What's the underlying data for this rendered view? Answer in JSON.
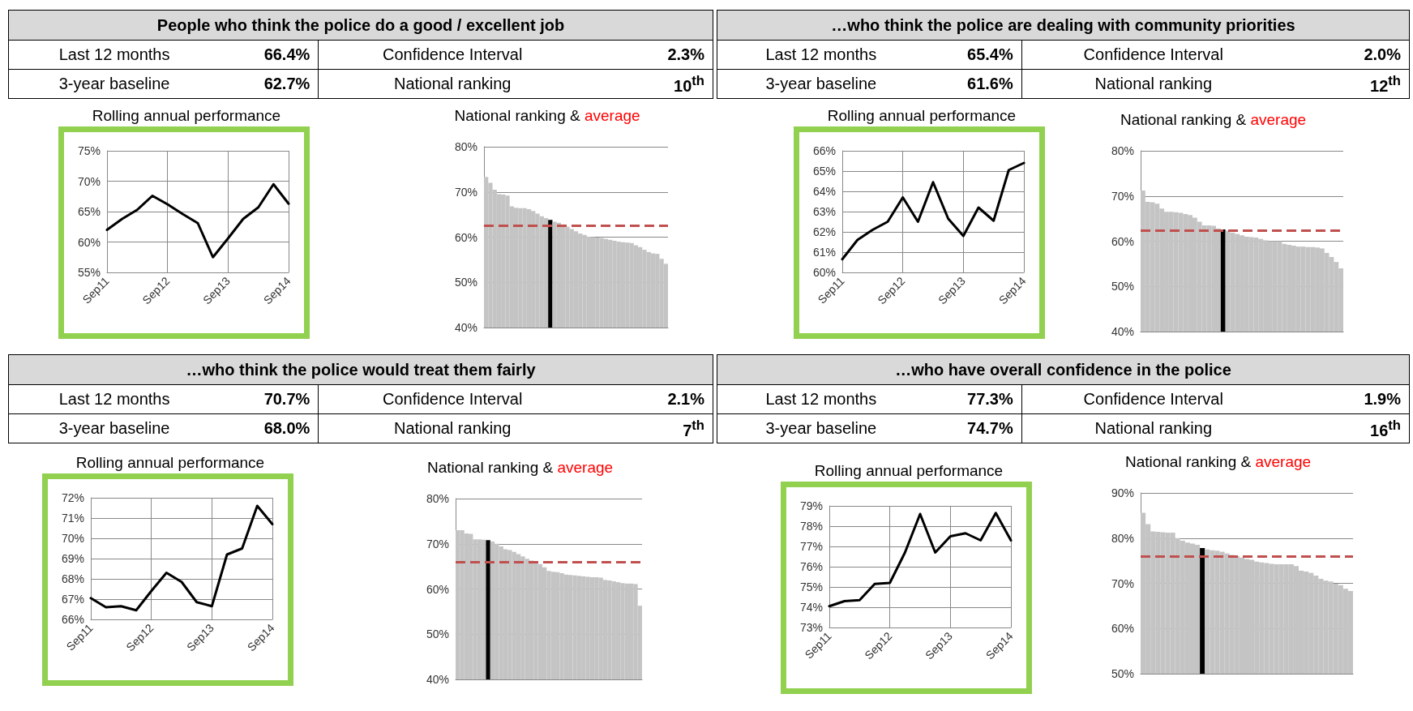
{
  "chart_data": [
    {
      "type": "other",
      "title": "People who think the police do a good / excellent job",
      "annotations": [
        "Last 12 months",
        "66.4%",
        "Confidence Interval",
        "2.3%",
        "3-year baseline",
        "62.7%",
        "National ranking",
        "10$^{th}$"
      ]
    },
    {
      "type": "other",
      "title": "…who think the police are dealing with community priorities",
      "annotations": [
        "Last 12 months",
        "65.4%",
        "Confidence Interval",
        "2.0%",
        "3-year baseline",
        "61.6%",
        "National ranking",
        "12$^{th}$"
      ]
    },
    {
      "type": "line",
      "title": "Rolling annual performance",
      "categories": [
        "Sep11",
        null,
        null,
        null,
        "Sep12",
        null,
        null,
        null,
        "Sep13",
        null,
        null,
        null,
        "Sep14"
      ],
      "series": [
        {
          "color": "#000000",
          "values": [
            62.0,
            63.8,
            65.3,
            67.6,
            66.2,
            64.6,
            63.1,
            57.5,
            60.6,
            63.8,
            65.7,
            69.5,
            66.3
          ]
        }
      ],
      "ylim": [
        55,
        75
      ],
      "yticks": [
        {
          "value": 55,
          "label": "55%"
        },
        {
          "value": 60,
          "label": "60%"
        },
        {
          "value": 65,
          "label": "65%"
        },
        {
          "value": 70,
          "label": "70%"
        },
        {
          "value": 75,
          "label": "75%"
        }
      ],
      "grid": true,
      "marker": "none",
      "line_style": "solid"
    },
    {
      "type": "bar",
      "title": "National ranking & average",
      "categories": [
        null,
        null,
        null,
        null,
        null,
        null,
        null,
        null,
        null,
        null,
        null,
        null,
        null,
        null,
        null,
        null,
        null,
        null,
        null,
        null,
        null,
        null,
        null,
        null,
        null,
        null,
        null,
        null,
        null,
        null,
        null,
        null,
        null,
        null,
        null,
        null,
        null,
        null,
        null,
        null,
        null,
        null,
        null
      ],
      "values": [
        73.3,
        72.0,
        70.5,
        69.5,
        69.4,
        69.2,
        66.8,
        66.5,
        66.4,
        66.4,
        66.2,
        65.8,
        65.2,
        64.6,
        64.2,
        63.8,
        63.4,
        63.2,
        62.8,
        62.3,
        61.8,
        61.3,
        60.8,
        60.5,
        60.1,
        60.0,
        59.9,
        59.8,
        59.6,
        59.4,
        59.2,
        59.0,
        58.9,
        58.8,
        58.7,
        58.2,
        57.8,
        57.2,
        56.7,
        56.4,
        56.3,
        55.2,
        54.1
      ],
      "colors": [
        "#c4c4c4",
        "#c4c4c4",
        "#c4c4c4",
        "#c4c4c4",
        "#c4c4c4",
        "#c4c4c4",
        "#c4c4c4",
        "#c4c4c4",
        "#c4c4c4",
        "#c4c4c4",
        "#c4c4c4",
        "#c4c4c4",
        "#c4c4c4",
        "#c4c4c4",
        "#c4c4c4",
        "#000000",
        "#c4c4c4",
        "#c4c4c4",
        "#c4c4c4",
        "#c4c4c4",
        "#c4c4c4",
        "#c4c4c4",
        "#c4c4c4",
        "#c4c4c4",
        "#c4c4c4",
        "#c4c4c4",
        "#c4c4c4",
        "#c4c4c4",
        "#c4c4c4",
        "#c4c4c4",
        "#c4c4c4",
        "#c4c4c4",
        "#c4c4c4",
        "#c4c4c4",
        "#c4c4c4",
        "#c4c4c4",
        "#c4c4c4",
        "#c4c4c4",
        "#c4c4c4",
        "#c4c4c4",
        "#c4c4c4",
        "#c4c4c4",
        "#c4c4c4"
      ],
      "ylim": [
        40,
        80
      ],
      "yticks": [
        {
          "value": 40,
          "label": "40%"
        },
        {
          "value": 50,
          "label": "50%"
        },
        {
          "value": 60,
          "label": "60%"
        },
        {
          "value": 70,
          "label": "70%"
        },
        {
          "value": 80,
          "label": "80%"
        }
      ],
      "grid": "y",
      "tick_labels": "y",
      "ref_lines": [
        {
          "axis": "y",
          "value": 62.5,
          "color": "#c0504d",
          "line_style": "dashed"
        }
      ]
    },
    {
      "type": "line",
      "title": "Rolling annual performance",
      "categories": [
        "Sep11",
        null,
        null,
        null,
        "Sep12",
        null,
        null,
        null,
        "Sep13",
        null,
        null,
        null,
        "Sep14"
      ],
      "series": [
        {
          "color": "#000000",
          "values": [
            60.65,
            61.6,
            62.1,
            62.5,
            63.7,
            62.5,
            64.45,
            62.65,
            61.8,
            63.2,
            62.55,
            65.05,
            65.4
          ]
        }
      ],
      "ylim": [
        60,
        66
      ],
      "yticks": [
        {
          "value": 60,
          "label": "60%"
        },
        {
          "value": 61,
          "label": "61%"
        },
        {
          "value": 62,
          "label": "62%"
        },
        {
          "value": 63,
          "label": "63%"
        },
        {
          "value": 64,
          "label": "64%"
        },
        {
          "value": 65,
          "label": "65%"
        },
        {
          "value": 66,
          "label": "66%"
        }
      ],
      "grid": true,
      "marker": "none",
      "line_style": "solid"
    },
    {
      "type": "bar",
      "title": "National ranking & average",
      "categories": [
        null,
        null,
        null,
        null,
        null,
        null,
        null,
        null,
        null,
        null,
        null,
        null,
        null,
        null,
        null,
        null,
        null,
        null,
        null,
        null,
        null,
        null,
        null,
        null,
        null,
        null,
        null,
        null,
        null,
        null,
        null,
        null,
        null,
        null,
        null,
        null,
        null,
        null,
        null,
        null,
        null,
        null,
        null
      ],
      "values": [
        71.2,
        68.7,
        68.6,
        68.3,
        67.2,
        66.5,
        66.5,
        66.4,
        66.3,
        66.0,
        65.8,
        65.2,
        64.3,
        63.5,
        63.5,
        63.4,
        62.8,
        62.6,
        62.3,
        61.9,
        61.6,
        61.3,
        61.0,
        60.9,
        60.8,
        60.5,
        60.2,
        60.0,
        60.0,
        60.0,
        59.4,
        59.2,
        59.0,
        58.8,
        58.8,
        58.7,
        58.7,
        58.6,
        58.4,
        57.4,
        56.5,
        55.4,
        54.0
      ],
      "colors": [
        "#c4c4c4",
        "#c4c4c4",
        "#c4c4c4",
        "#c4c4c4",
        "#c4c4c4",
        "#c4c4c4",
        "#c4c4c4",
        "#c4c4c4",
        "#c4c4c4",
        "#c4c4c4",
        "#c4c4c4",
        "#c4c4c4",
        "#c4c4c4",
        "#c4c4c4",
        "#c4c4c4",
        "#c4c4c4",
        "#c4c4c4",
        "#000000",
        "#c4c4c4",
        "#c4c4c4",
        "#c4c4c4",
        "#c4c4c4",
        "#c4c4c4",
        "#c4c4c4",
        "#c4c4c4",
        "#c4c4c4",
        "#c4c4c4",
        "#c4c4c4",
        "#c4c4c4",
        "#c4c4c4",
        "#c4c4c4",
        "#c4c4c4",
        "#c4c4c4",
        "#c4c4c4",
        "#c4c4c4",
        "#c4c4c4",
        "#c4c4c4",
        "#c4c4c4",
        "#c4c4c4",
        "#c4c4c4",
        "#c4c4c4",
        "#c4c4c4",
        "#c4c4c4"
      ],
      "ylim": [
        40,
        80
      ],
      "yticks": [
        {
          "value": 40,
          "label": "40%"
        },
        {
          "value": 50,
          "label": "50%"
        },
        {
          "value": 60,
          "label": "60%"
        },
        {
          "value": 70,
          "label": "70%"
        },
        {
          "value": 80,
          "label": "80%"
        }
      ],
      "grid": "y",
      "tick_labels": "y",
      "ref_lines": [
        {
          "axis": "y",
          "value": 62.3,
          "color": "#c0504d",
          "line_style": "dashed"
        }
      ]
    },
    {
      "type": "other",
      "title": "…who think the police would treat them fairly",
      "annotations": [
        "Last 12 months",
        "70.7%",
        "Confidence Interval",
        "2.1%",
        "3-year baseline",
        "68.0%",
        "National ranking",
        "7$^{th}$"
      ]
    },
    {
      "type": "other",
      "title": "…who have overall confidence in the police",
      "annotations": [
        "Last 12 months",
        "77.3%",
        "Confidence Interval",
        "1.9%",
        "3-year baseline",
        "74.7%",
        "National ranking",
        "16$^{th}$"
      ]
    },
    {
      "type": "line",
      "title": "Rolling annual performance",
      "categories": [
        "Sep11",
        null,
        null,
        null,
        "Sep12",
        null,
        null,
        null,
        "Sep13",
        null,
        null,
        null,
        "Sep14"
      ],
      "series": [
        {
          "color": "#000000",
          "values": [
            67.05,
            66.6,
            66.65,
            66.45,
            67.4,
            68.3,
            67.85,
            66.85,
            66.65,
            69.2,
            69.5,
            71.6,
            70.7
          ]
        }
      ],
      "ylim": [
        66,
        72
      ],
      "yticks": [
        {
          "value": 66,
          "label": "66%"
        },
        {
          "value": 67,
          "label": "67%"
        },
        {
          "value": 68,
          "label": "68%"
        },
        {
          "value": 69,
          "label": "69%"
        },
        {
          "value": 70,
          "label": "70%"
        },
        {
          "value": 71,
          "label": "71%"
        },
        {
          "value": 72,
          "label": "72%"
        }
      ],
      "grid": true,
      "marker": "none",
      "line_style": "solid"
    },
    {
      "type": "bar",
      "title": "National ranking & average",
      "categories": [
        null,
        null,
        null,
        null,
        null,
        null,
        null,
        null,
        null,
        null,
        null,
        null,
        null,
        null,
        null,
        null,
        null,
        null,
        null,
        null,
        null,
        null,
        null,
        null,
        null,
        null,
        null,
        null,
        null,
        null,
        null,
        null,
        null,
        null,
        null,
        null,
        null,
        null,
        null,
        null,
        null,
        null,
        null
      ],
      "values": [
        73.0,
        73.0,
        72.3,
        72.2,
        71.0,
        71.0,
        70.9,
        70.8,
        70.5,
        70.0,
        69.4,
        68.8,
        68.6,
        68.2,
        67.7,
        67.2,
        66.7,
        66.3,
        65.8,
        65.5,
        64.8,
        64.0,
        63.8,
        63.7,
        63.5,
        63.2,
        63.1,
        63.0,
        62.9,
        62.8,
        62.7,
        62.6,
        62.6,
        62.5,
        62.0,
        61.9,
        61.7,
        61.5,
        61.3,
        61.2,
        61.2,
        61.1,
        56.3
      ],
      "colors": [
        "#c4c4c4",
        "#c4c4c4",
        "#c4c4c4",
        "#c4c4c4",
        "#c4c4c4",
        "#c4c4c4",
        "#c4c4c4",
        "#000000",
        "#c4c4c4",
        "#c4c4c4",
        "#c4c4c4",
        "#c4c4c4",
        "#c4c4c4",
        "#c4c4c4",
        "#c4c4c4",
        "#c4c4c4",
        "#c4c4c4",
        "#c4c4c4",
        "#c4c4c4",
        "#c4c4c4",
        "#c4c4c4",
        "#c4c4c4",
        "#c4c4c4",
        "#c4c4c4",
        "#c4c4c4",
        "#c4c4c4",
        "#c4c4c4",
        "#c4c4c4",
        "#c4c4c4",
        "#c4c4c4",
        "#c4c4c4",
        "#c4c4c4",
        "#c4c4c4",
        "#c4c4c4",
        "#c4c4c4",
        "#c4c4c4",
        "#c4c4c4",
        "#c4c4c4",
        "#c4c4c4",
        "#c4c4c4",
        "#c4c4c4",
        "#c4c4c4",
        "#c4c4c4"
      ],
      "ylim": [
        40,
        80
      ],
      "yticks": [
        {
          "value": 40,
          "label": "40%"
        },
        {
          "value": 50,
          "label": "50%"
        },
        {
          "value": 60,
          "label": "60%"
        },
        {
          "value": 70,
          "label": "70%"
        },
        {
          "value": 80,
          "label": "80%"
        }
      ],
      "grid": "y",
      "tick_labels": "y",
      "ref_lines": [
        {
          "axis": "y",
          "value": 66.0,
          "color": "#c0504d",
          "line_style": "dashed"
        }
      ]
    },
    {
      "type": "line",
      "title": "Rolling annual performance",
      "categories": [
        "Sep11",
        null,
        null,
        null,
        "Sep12",
        null,
        null,
        null,
        "Sep13",
        null,
        null,
        null,
        "Sep14"
      ],
      "series": [
        {
          "color": "#000000",
          "values": [
            74.05,
            74.3,
            74.35,
            75.15,
            75.2,
            76.7,
            78.6,
            76.7,
            77.5,
            77.65,
            77.3,
            78.65,
            77.3
          ]
        }
      ],
      "ylim": [
        73,
        79
      ],
      "yticks": [
        {
          "value": 73,
          "label": "73%"
        },
        {
          "value": 74,
          "label": "74%"
        },
        {
          "value": 75,
          "label": "75%"
        },
        {
          "value": 76,
          "label": "76%"
        },
        {
          "value": 77,
          "label": "77%"
        },
        {
          "value": 78,
          "label": "78%"
        },
        {
          "value": 79,
          "label": "79%"
        }
      ],
      "grid": true,
      "marker": "none",
      "line_style": "solid"
    },
    {
      "type": "bar",
      "title": "National ranking & average",
      "categories": [
        null,
        null,
        null,
        null,
        null,
        null,
        null,
        null,
        null,
        null,
        null,
        null,
        null,
        null,
        null,
        null,
        null,
        null,
        null,
        null,
        null,
        null,
        null,
        null,
        null,
        null,
        null,
        null,
        null,
        null,
        null,
        null,
        null,
        null,
        null,
        null,
        null,
        null,
        null,
        null,
        null,
        null,
        null
      ],
      "values": [
        85.6,
        83.1,
        81.5,
        81.4,
        81.3,
        81.2,
        81.2,
        80.0,
        79.4,
        79.0,
        78.8,
        78.5,
        77.8,
        77.5,
        77.3,
        77.2,
        77.0,
        76.6,
        76.3,
        76.0,
        75.7,
        75.4,
        75.2,
        74.8,
        74.6,
        74.5,
        74.3,
        74.2,
        74.2,
        74.2,
        74.2,
        73.8,
        72.8,
        72.6,
        72.3,
        71.7,
        71.0,
        70.6,
        70.4,
        69.9,
        69.6,
        68.8,
        68.3
      ],
      "colors": [
        "#c4c4c4",
        "#c4c4c4",
        "#c4c4c4",
        "#c4c4c4",
        "#c4c4c4",
        "#c4c4c4",
        "#c4c4c4",
        "#c4c4c4",
        "#c4c4c4",
        "#c4c4c4",
        "#c4c4c4",
        "#c4c4c4",
        "#000000",
        "#c4c4c4",
        "#c4c4c4",
        "#c4c4c4",
        "#c4c4c4",
        "#c4c4c4",
        "#c4c4c4",
        "#c4c4c4",
        "#c4c4c4",
        "#c4c4c4",
        "#c4c4c4",
        "#c4c4c4",
        "#c4c4c4",
        "#c4c4c4",
        "#c4c4c4",
        "#c4c4c4",
        "#c4c4c4",
        "#c4c4c4",
        "#c4c4c4",
        "#c4c4c4",
        "#c4c4c4",
        "#c4c4c4",
        "#c4c4c4",
        "#c4c4c4",
        "#c4c4c4",
        "#c4c4c4",
        "#c4c4c4",
        "#c4c4c4",
        "#c4c4c4",
        "#c4c4c4",
        "#c4c4c4"
      ],
      "ylim": [
        50,
        90
      ],
      "yticks": [
        {
          "value": 50,
          "label": "50%"
        },
        {
          "value": 60,
          "label": "60%"
        },
        {
          "value": 70,
          "label": "70%"
        },
        {
          "value": 80,
          "label": "80%"
        },
        {
          "value": 90,
          "label": "90%"
        }
      ],
      "grid": "y",
      "tick_labels": "y",
      "ref_lines": [
        {
          "axis": "y",
          "value": 76.0,
          "color": "#c0504d",
          "line_style": "dashed"
        }
      ]
    }
  ]
}
